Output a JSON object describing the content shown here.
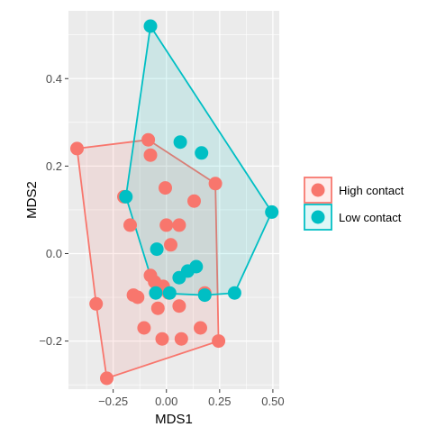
{
  "chart_data": {
    "type": "scatter",
    "title": "",
    "xlabel": "MDS1",
    "ylabel": "MDS2",
    "xlim": [
      -0.46,
      0.53
    ],
    "ylim": [
      -0.31,
      0.555
    ],
    "x_ticks": [
      -0.25,
      0.0,
      0.25,
      0.5
    ],
    "x_tick_labels": [
      "−0.25",
      "0.00",
      "0.25",
      "0.50"
    ],
    "y_ticks": [
      -0.2,
      0.0,
      0.2,
      0.4
    ],
    "y_tick_labels": [
      "−0.2",
      "0.0",
      "0.2",
      "0.4"
    ],
    "grid": true,
    "legend_position": "right",
    "hulls": true,
    "series": [
      {
        "name": "High contact",
        "color": "#F8766D",
        "points": [
          [
            -0.42,
            0.24
          ],
          [
            -0.33,
            -0.115
          ],
          [
            -0.28,
            -0.285
          ],
          [
            -0.2,
            0.13
          ],
          [
            -0.17,
            0.065
          ],
          [
            -0.155,
            -0.095
          ],
          [
            -0.135,
            -0.1
          ],
          [
            -0.105,
            -0.17
          ],
          [
            -0.085,
            0.26
          ],
          [
            -0.075,
            -0.05
          ],
          [
            -0.075,
            0.225
          ],
          [
            -0.055,
            -0.065
          ],
          [
            -0.04,
            -0.125
          ],
          [
            -0.02,
            -0.195
          ],
          [
            -0.015,
            -0.075
          ],
          [
            -0.005,
            0.15
          ],
          [
            0.0,
            0.065
          ],
          [
            0.01,
            -0.09
          ],
          [
            0.02,
            0.02
          ],
          [
            0.06,
            -0.12
          ],
          [
            0.06,
            0.065
          ],
          [
            0.07,
            -0.195
          ],
          [
            0.13,
            0.12
          ],
          [
            0.16,
            -0.17
          ],
          [
            0.18,
            -0.09
          ],
          [
            0.23,
            0.16
          ],
          [
            0.245,
            -0.2
          ]
        ]
      },
      {
        "name": "Low contact",
        "color": "#00BFC4",
        "points": [
          [
            -0.075,
            0.52
          ],
          [
            -0.19,
            0.13
          ],
          [
            -0.045,
            0.01
          ],
          [
            -0.05,
            -0.09
          ],
          [
            0.065,
            0.255
          ],
          [
            0.1,
            -0.04
          ],
          [
            0.14,
            -0.03
          ],
          [
            0.165,
            0.23
          ],
          [
            0.06,
            -0.055
          ],
          [
            0.015,
            -0.09
          ],
          [
            0.18,
            -0.095
          ],
          [
            0.32,
            -0.09
          ],
          [
            0.495,
            0.095
          ]
        ]
      }
    ]
  }
}
